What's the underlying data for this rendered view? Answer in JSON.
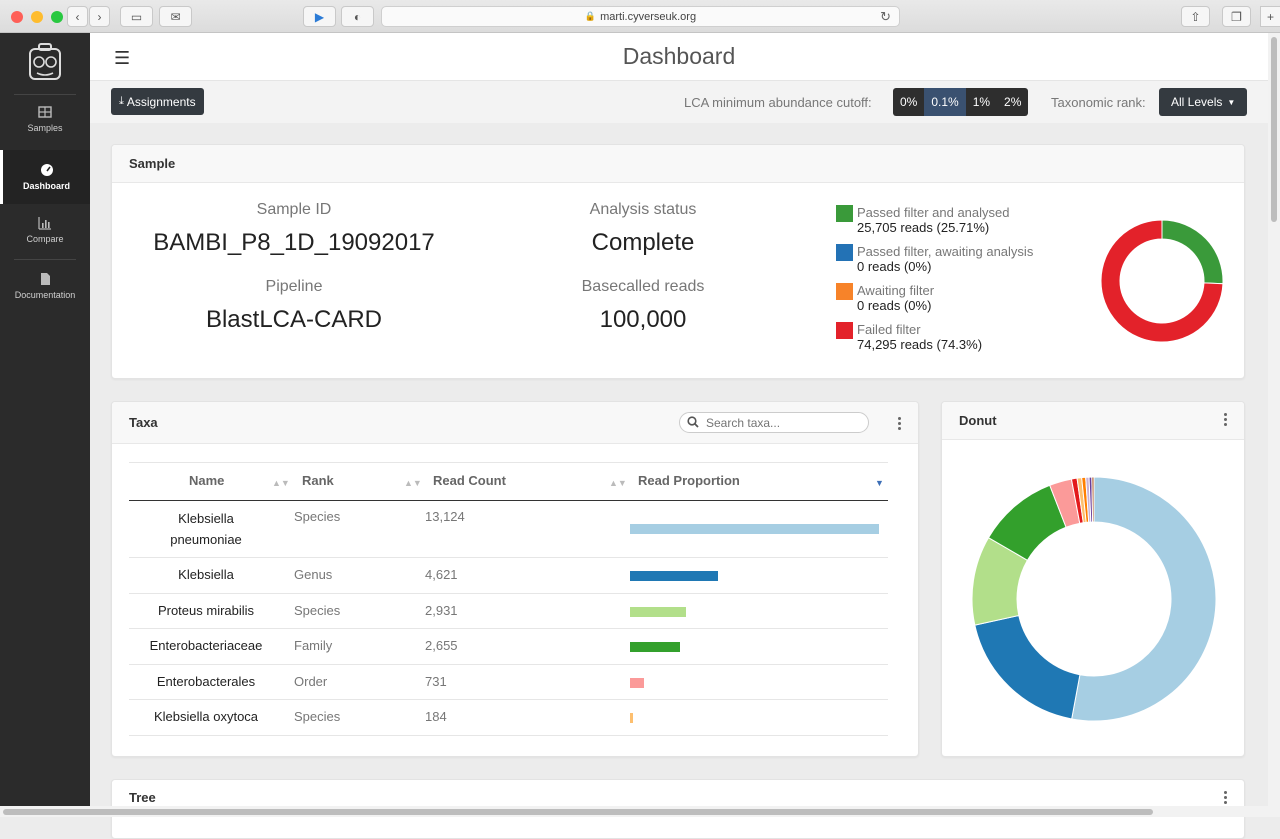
{
  "browser": {
    "url": "marti.cyverseuk.org"
  },
  "sidebar": {
    "items": [
      {
        "label": "Samples"
      },
      {
        "label": "Dashboard"
      },
      {
        "label": "Compare"
      },
      {
        "label": "Documentation"
      }
    ]
  },
  "topbar": {
    "title": "Dashboard"
  },
  "toolbar": {
    "assignments_label": "Assignments",
    "lca_label": "LCA minimum abundance cutoff:",
    "lca_options": [
      "0%",
      "0.1%",
      "1%",
      "2%"
    ],
    "lca_selected": "0.1%",
    "taxonomic_rank_label": "Taxonomic rank:",
    "taxonomic_rank_value": "All Levels"
  },
  "sample": {
    "card_title": "Sample",
    "sample_id_label": "Sample ID",
    "sample_id": "BAMBI_P8_1D_19092017",
    "pipeline_label": "Pipeline",
    "pipeline": "BlastLCA-CARD",
    "status_label": "Analysis status",
    "status": "Complete",
    "basecalled_label": "Basecalled reads",
    "basecalled": "100,000",
    "legend": [
      {
        "name": "Passed filter and analysed",
        "value": "25,705 reads (25.71%)",
        "color": "#3a9a3a"
      },
      {
        "name": "Passed filter, awaiting analysis",
        "value": "0 reads (0%)",
        "color": "#2372b5"
      },
      {
        "name": "Awaiting filter",
        "value": "0 reads (0%)",
        "color": "#f78329"
      },
      {
        "name": "Failed filter",
        "value": "74,295 reads (74.3%)",
        "color": "#e3222a"
      }
    ]
  },
  "taxa": {
    "card_title": "Taxa",
    "search_placeholder": "Search taxa...",
    "columns": [
      "Name",
      "Rank",
      "Read Count",
      "Read Proportion"
    ],
    "rows": [
      {
        "name": "Klebsiella pneumoniae",
        "rank": "Species",
        "count": "13,124",
        "proportion": 1.0,
        "color": "#a6cee3"
      },
      {
        "name": "Klebsiella",
        "rank": "Genus",
        "count": "4,621",
        "proportion": 0.352,
        "color": "#1f78b4"
      },
      {
        "name": "Proteus mirabilis",
        "rank": "Species",
        "count": "2,931",
        "proportion": 0.223,
        "color": "#b2df8a"
      },
      {
        "name": "Enterobacteriaceae",
        "rank": "Family",
        "count": "2,655",
        "proportion": 0.202,
        "color": "#33a02c"
      },
      {
        "name": "Enterobacterales",
        "rank": "Order",
        "count": "731",
        "proportion": 0.056,
        "color": "#fb9a99"
      },
      {
        "name": "Klebsiella oxytoca",
        "rank": "Species",
        "count": "184",
        "proportion": 0.014,
        "color": "#fdbf6f"
      }
    ]
  },
  "donut": {
    "card_title": "Donut",
    "slices": [
      {
        "value": 13124,
        "color": "#a6cee3"
      },
      {
        "value": 4621,
        "color": "#1f78b4"
      },
      {
        "value": 2931,
        "color": "#b2df8a"
      },
      {
        "value": 2655,
        "color": "#33a02c"
      },
      {
        "value": 731,
        "color": "#fb9a99"
      },
      {
        "value": 184,
        "color": "#e31a1c"
      },
      {
        "value": 150,
        "color": "#fdbf6f"
      },
      {
        "value": 130,
        "color": "#ff7f00"
      },
      {
        "value": 110,
        "color": "#cab2d6"
      },
      {
        "value": 90,
        "color": "#6a3d9a"
      },
      {
        "value": 70,
        "color": "#b15928"
      }
    ]
  },
  "tree": {
    "card_title": "Tree"
  }
}
